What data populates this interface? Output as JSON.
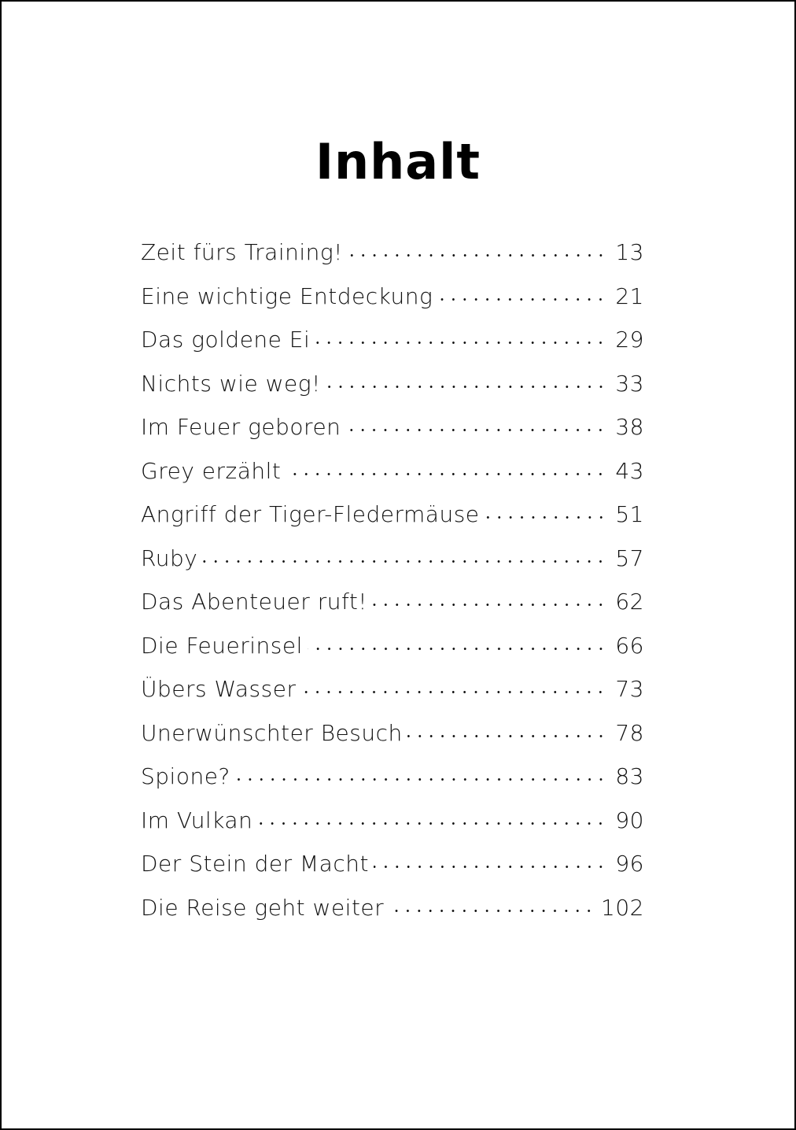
{
  "page": {
    "title": "Inhalt",
    "border_color": "#000000",
    "background": "#ffffff"
  },
  "toc": {
    "entries": [
      {
        "title": "Zeit fürs Training!",
        "page": "13"
      },
      {
        "title": "Eine wichtige Entdeckung",
        "page": "21"
      },
      {
        "title": "Das goldene Ei",
        "page": "29"
      },
      {
        "title": "Nichts wie weg!",
        "page": "33"
      },
      {
        "title": "Im Feuer geboren",
        "page": "38"
      },
      {
        "title": "Grey erzählt",
        "page": "43"
      },
      {
        "title": "Angriff der Tiger-Fledermäuse",
        "page": "51"
      },
      {
        "title": "Ruby",
        "page": "57"
      },
      {
        "title": "Das Abenteuer ruft!",
        "page": "62"
      },
      {
        "title": "Die Feuerinsel",
        "page": "66"
      },
      {
        "title": "Übers Wasser",
        "page": "73"
      },
      {
        "title": "Unerwünschter Besuch",
        "page": "78"
      },
      {
        "title": "Spione?",
        "page": "83"
      },
      {
        "title": "Im Vulkan",
        "page": "90"
      },
      {
        "title": "Der Stein der Macht",
        "page": "96"
      },
      {
        "title": "Die Reise geht weiter",
        "page": "102"
      }
    ]
  }
}
